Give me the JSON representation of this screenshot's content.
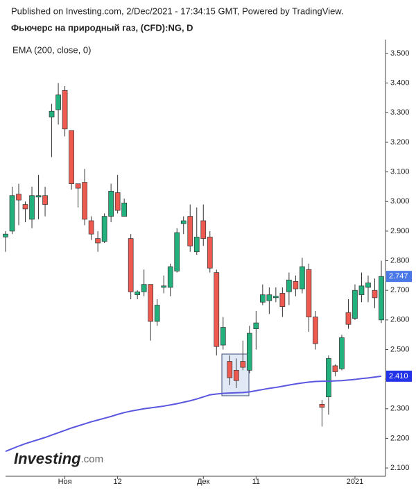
{
  "header": {
    "published": "Published on Investing.com, 2/Dec/2021 - 17:34:15 GMT, Powered by TradingView.",
    "title": "Фьючерс на природный газ, (CFD):NG, D"
  },
  "chart_data": {
    "type": "candlestick",
    "categories": [
      null,
      null,
      null,
      null,
      null,
      null,
      null,
      null,
      null,
      "Ноя",
      null,
      null,
      null,
      null,
      null,
      null,
      null,
      "12",
      null,
      null,
      null,
      null,
      null,
      null,
      null,
      null,
      null,
      null,
      null,
      null,
      "Дек",
      null,
      null,
      null,
      null,
      null,
      null,
      null,
      "11",
      null,
      null,
      null,
      null,
      null,
      null,
      null,
      null,
      null,
      null,
      null,
      null,
      null,
      null,
      "2021",
      null,
      null,
      null,
      null
    ],
    "candles": {
      "up_color": "#22b07d",
      "down_color": "#ef5a50",
      "open": [
        2.88,
        2.9,
        3.025,
        2.99,
        2.94,
        3.015,
        3.02,
        3.285,
        3.31,
        3.375,
        3.24,
        3.06,
        3.065,
        2.935,
        2.875,
        2.865,
        2.95,
        3.03,
        2.95,
        2.875,
        2.685,
        2.695,
        2.72,
        2.595,
        2.71,
        2.71,
        2.765,
        2.925,
        2.95,
        2.83,
        2.935,
        2.88,
        2.76,
        2.515,
        2.46,
        2.43,
        2.46,
        2.43,
        2.57,
        2.66,
        2.665,
        2.675,
        2.69,
        2.695,
        2.73,
        2.705,
        2.77,
        2.61,
        2.315,
        2.34,
        2.445,
        2.435,
        2.625,
        2.605,
        2.685,
        2.71,
        2.7,
        2.6
      ],
      "high": [
        2.9,
        3.05,
        3.06,
        3.0,
        3.05,
        3.09,
        3.05,
        3.33,
        3.4,
        3.39,
        3.24,
        3.06,
        3.11,
        2.95,
        2.9,
        2.96,
        3.06,
        3.09,
        3.01,
        2.89,
        2.7,
        2.77,
        2.72,
        2.67,
        2.75,
        2.79,
        2.91,
        2.95,
        2.99,
        2.98,
        2.99,
        2.9,
        2.77,
        2.61,
        2.48,
        2.47,
        2.53,
        2.58,
        2.63,
        2.72,
        2.71,
        2.71,
        2.71,
        2.76,
        2.75,
        2.81,
        2.79,
        2.63,
        2.33,
        2.48,
        2.45,
        2.55,
        2.67,
        2.72,
        2.76,
        2.75,
        2.74,
        2.8
      ],
      "low": [
        2.83,
        2.89,
        2.92,
        2.93,
        2.91,
        2.94,
        2.95,
        3.15,
        3.26,
        3.22,
        3.04,
        2.98,
        2.92,
        2.87,
        2.83,
        2.86,
        2.93,
        2.96,
        2.95,
        2.67,
        2.67,
        2.68,
        2.53,
        2.58,
        2.69,
        2.68,
        2.76,
        2.89,
        2.83,
        2.82,
        2.85,
        2.76,
        2.48,
        2.5,
        2.38,
        2.37,
        2.43,
        2.42,
        2.5,
        2.65,
        2.62,
        2.66,
        2.61,
        2.65,
        2.68,
        2.69,
        2.56,
        2.5,
        2.24,
        2.28,
        2.41,
        2.43,
        2.57,
        2.6,
        2.66,
        2.66,
        2.64,
        2.59
      ],
      "close": [
        2.89,
        3.02,
        3.005,
        2.975,
        3.02,
        3.02,
        2.99,
        3.305,
        3.36,
        3.245,
        3.06,
        3.045,
        2.94,
        2.89,
        2.86,
        2.95,
        3.035,
        2.97,
        2.995,
        2.695,
        2.695,
        2.72,
        2.595,
        2.65,
        2.715,
        2.78,
        2.895,
        2.935,
        2.85,
        2.88,
        2.875,
        2.775,
        2.51,
        2.575,
        2.405,
        2.395,
        2.44,
        2.555,
        2.59,
        2.685,
        2.685,
        2.68,
        2.645,
        2.735,
        2.705,
        2.78,
        2.61,
        2.52,
        2.305,
        2.47,
        2.425,
        2.54,
        2.585,
        2.7,
        2.715,
        2.725,
        2.675,
        2.747
      ],
      "last_color": "#4a78e6"
    },
    "series": [
      {
        "name": "EMA (200, close, 0)",
        "color": "#5a56e0",
        "last_label": "2.410",
        "label_color": "#2233e8",
        "values": [
          2.156,
          2.165,
          2.174,
          2.182,
          2.189,
          2.196,
          2.203,
          2.211,
          2.219,
          2.227,
          2.235,
          2.242,
          2.249,
          2.256,
          2.262,
          2.268,
          2.274,
          2.281,
          2.287,
          2.292,
          2.296,
          2.3,
          2.303,
          2.306,
          2.309,
          2.313,
          2.317,
          2.322,
          2.327,
          2.333,
          2.34,
          2.347,
          2.35,
          2.352,
          2.353,
          2.354,
          2.355,
          2.357,
          2.361,
          2.365,
          2.369,
          2.372,
          2.376,
          2.38,
          2.384,
          2.387,
          2.39,
          2.392,
          2.393,
          2.393,
          2.394,
          2.395,
          2.397,
          2.399,
          2.402,
          2.404,
          2.407,
          2.41
        ]
      }
    ],
    "ylim": [
      2.072,
      3.547
    ],
    "yticks": [
      {
        "value": 2.1,
        "label": "2.100"
      },
      {
        "value": 2.2,
        "label": "2.200"
      },
      {
        "value": 2.3,
        "label": "2.300"
      },
      {
        "value": 2.4,
        "label": "2.400"
      },
      {
        "value": 2.5,
        "label": "2.500"
      },
      {
        "value": 2.6,
        "label": "2.600"
      },
      {
        "value": 2.7,
        "label": "2.700"
      },
      {
        "value": 2.8,
        "label": "2.800"
      },
      {
        "value": 2.9,
        "label": "2.900"
      },
      {
        "value": 3.0,
        "label": "3.000"
      },
      {
        "value": 3.1,
        "label": "3.100"
      },
      {
        "value": 3.2,
        "label": "3.200"
      },
      {
        "value": 3.3,
        "label": "3.300"
      },
      {
        "value": 3.4,
        "label": "3.400"
      },
      {
        "value": 3.5,
        "label": "3.500"
      }
    ],
    "logo": {
      "brand": "Investing",
      "suffix": ".com"
    }
  }
}
